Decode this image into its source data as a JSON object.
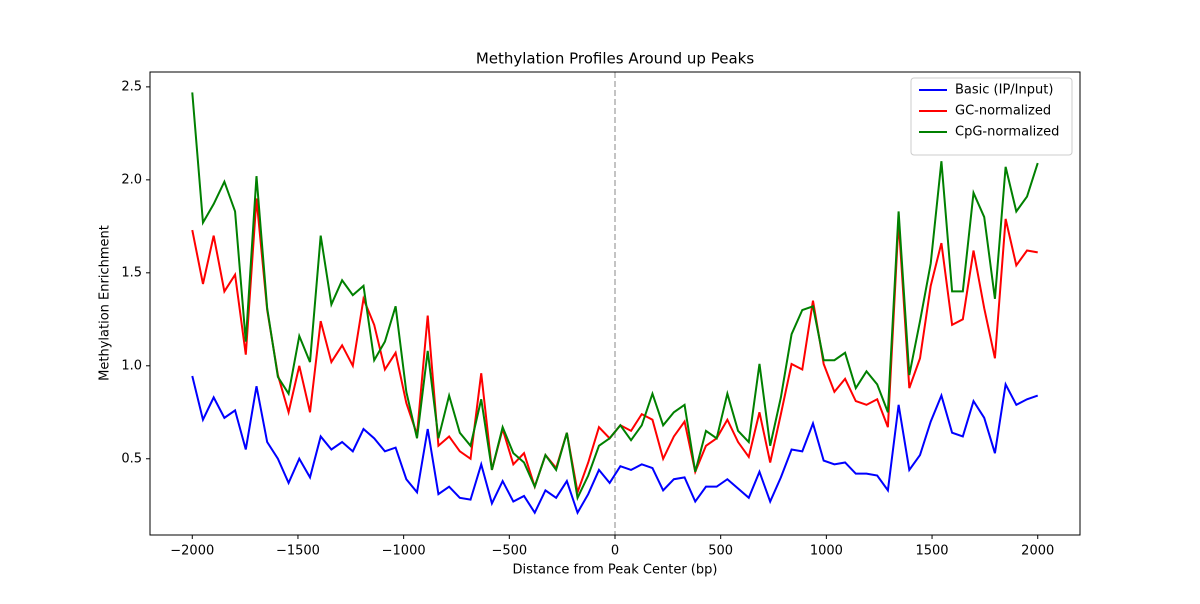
{
  "chart_data": {
    "type": "line",
    "title": "Methylation Profiles Around up Peaks",
    "xlabel": "Distance from Peak Center (bp)",
    "ylabel": "Methylation Enrichment",
    "x": [
      -2000,
      -1949.4,
      -1898.7,
      -1848.1,
      -1797.5,
      -1746.8,
      -1696.2,
      -1645.6,
      -1594.9,
      -1544.3,
      -1493.7,
      -1443.0,
      -1392.4,
      -1341.8,
      -1291.1,
      -1240.5,
      -1189.9,
      -1139.2,
      -1088.6,
      -1038.0,
      -987.3,
      -936.7,
      -886.1,
      -835.4,
      -784.8,
      -734.2,
      -683.5,
      -632.9,
      -582.3,
      -531.6,
      -481.0,
      -430.4,
      -379.7,
      -329.1,
      -278.5,
      -227.8,
      -177.2,
      -126.6,
      -75.9,
      -25.3,
      25.3,
      75.9,
      126.6,
      177.2,
      227.8,
      278.5,
      329.1,
      379.7,
      430.4,
      481.0,
      531.6,
      582.3,
      632.9,
      683.5,
      734.2,
      784.8,
      835.4,
      886.1,
      936.7,
      987.3,
      1038.0,
      1088.6,
      1139.2,
      1189.9,
      1240.5,
      1291.1,
      1341.8,
      1392.4,
      1443.0,
      1493.7,
      1544.3,
      1594.9,
      1645.6,
      1696.2,
      1746.8,
      1797.5,
      1848.1,
      1898.7,
      1949.4,
      2000
    ],
    "series": [
      {
        "name": "Basic (IP/Input)",
        "color": "#0000ff",
        "values": [
          0.945,
          0.71,
          0.83,
          0.72,
          0.76,
          0.55,
          0.89,
          0.59,
          0.5,
          0.37,
          0.5,
          0.4,
          0.62,
          0.55,
          0.59,
          0.54,
          0.66,
          0.61,
          0.54,
          0.56,
          0.39,
          0.32,
          0.66,
          0.31,
          0.35,
          0.29,
          0.28,
          0.47,
          0.26,
          0.38,
          0.27,
          0.3,
          0.21,
          0.33,
          0.29,
          0.38,
          0.21,
          0.31,
          0.44,
          0.37,
          0.46,
          0.44,
          0.47,
          0.45,
          0.33,
          0.39,
          0.4,
          0.27,
          0.35,
          0.35,
          0.39,
          0.34,
          0.29,
          0.43,
          0.27,
          0.4,
          0.55,
          0.54,
          0.69,
          0.49,
          0.47,
          0.48,
          0.42,
          0.42,
          0.41,
          0.33,
          0.79,
          0.44,
          0.52,
          0.7,
          0.84,
          0.64,
          0.62,
          0.81,
          0.72,
          0.53,
          0.9,
          0.79,
          0.82,
          0.84
        ]
      },
      {
        "name": "GC-normalized",
        "color": "#ff0000",
        "values": [
          1.73,
          1.44,
          1.7,
          1.4,
          1.49,
          1.06,
          1.9,
          1.3,
          0.95,
          0.75,
          1.0,
          0.75,
          1.24,
          1.02,
          1.11,
          1.0,
          1.36,
          1.22,
          0.98,
          1.07,
          0.8,
          0.63,
          1.27,
          0.57,
          0.62,
          0.54,
          0.5,
          0.96,
          0.44,
          0.66,
          0.47,
          0.53,
          0.35,
          0.52,
          0.45,
          0.64,
          0.32,
          0.48,
          0.67,
          0.61,
          0.68,
          0.65,
          0.74,
          0.71,
          0.5,
          0.62,
          0.7,
          0.43,
          0.57,
          0.61,
          0.71,
          0.59,
          0.51,
          0.75,
          0.48,
          0.74,
          1.01,
          0.98,
          1.35,
          1.01,
          0.86,
          0.93,
          0.81,
          0.79,
          0.82,
          0.67,
          1.78,
          0.88,
          1.04,
          1.43,
          1.66,
          1.22,
          1.25,
          1.62,
          1.31,
          1.04,
          1.79,
          1.54,
          1.62,
          1.61
        ]
      },
      {
        "name": "CpG-normalized",
        "color": "#008000",
        "values": [
          2.47,
          1.77,
          1.87,
          1.99,
          1.83,
          1.13,
          2.02,
          1.31,
          0.94,
          0.85,
          1.16,
          1.02,
          1.7,
          1.33,
          1.46,
          1.38,
          1.43,
          1.03,
          1.13,
          1.32,
          0.86,
          0.61,
          1.08,
          0.61,
          0.84,
          0.64,
          0.57,
          0.82,
          0.44,
          0.67,
          0.53,
          0.48,
          0.35,
          0.52,
          0.44,
          0.64,
          0.29,
          0.41,
          0.57,
          0.61,
          0.68,
          0.6,
          0.68,
          0.85,
          0.68,
          0.75,
          0.79,
          0.43,
          0.65,
          0.61,
          0.85,
          0.65,
          0.59,
          1.01,
          0.57,
          0.83,
          1.17,
          1.3,
          1.32,
          1.03,
          1.03,
          1.07,
          0.88,
          0.97,
          0.9,
          0.75,
          1.83,
          0.95,
          1.24,
          1.55,
          2.1,
          1.4,
          1.4,
          1.93,
          1.8,
          1.36,
          2.07,
          1.83,
          1.91,
          2.09
        ]
      }
    ],
    "xlim": [
      -2200,
      2200
    ],
    "ylim": [
      0.09,
      2.58
    ],
    "xticks": [
      {
        "value": -2000,
        "label": "−2000"
      },
      {
        "value": -1500,
        "label": "−1500"
      },
      {
        "value": -1000,
        "label": "−1000"
      },
      {
        "value": -500,
        "label": "−500"
      },
      0,
      500,
      1000,
      1500,
      2000
    ],
    "yticks": [
      0.5,
      {
        "value": 1.0,
        "label": "1.0"
      },
      1.5,
      {
        "value": 2.0,
        "label": "2.0"
      },
      2.5
    ],
    "vline": {
      "value": 0,
      "color": "#b0b0b0"
    },
    "legend": "upper right",
    "grid": false
  }
}
